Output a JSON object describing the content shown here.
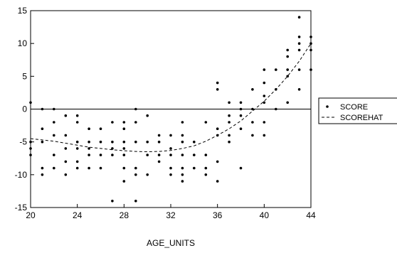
{
  "chart_data": {
    "type": "scatter",
    "title": "",
    "xlabel": "AGE_UNITS",
    "ylabel": "",
    "xlim": [
      20,
      44
    ],
    "ylim": [
      -15,
      15
    ],
    "x_ticks": [
      20,
      24,
      28,
      32,
      36,
      40,
      44
    ],
    "y_ticks": [
      -15,
      -10,
      -5,
      0,
      5,
      10,
      15
    ],
    "zero_line": true,
    "grid": false,
    "legend": {
      "placement": "right"
    },
    "series": [
      {
        "name": "SCORE",
        "style": "points",
        "color": "#000000",
        "points": [
          [
            20,
            1
          ],
          [
            20,
            -5
          ],
          [
            20,
            -6
          ],
          [
            20,
            -7
          ],
          [
            21,
            0
          ],
          [
            21,
            -3
          ],
          [
            21,
            -5
          ],
          [
            21,
            -9
          ],
          [
            21,
            -10
          ],
          [
            22,
            0
          ],
          [
            22,
            -2
          ],
          [
            22,
            -4
          ],
          [
            22,
            -7
          ],
          [
            22,
            -9
          ],
          [
            23,
            -1
          ],
          [
            23,
            -4
          ],
          [
            23,
            -6
          ],
          [
            23,
            -8
          ],
          [
            23,
            -10
          ],
          [
            24,
            -1
          ],
          [
            24,
            -2
          ],
          [
            24,
            -5
          ],
          [
            24,
            -6
          ],
          [
            24,
            -8
          ],
          [
            24,
            -9
          ],
          [
            25,
            -3
          ],
          [
            25,
            -5
          ],
          [
            25,
            -6
          ],
          [
            25,
            -7
          ],
          [
            25,
            -9
          ],
          [
            26,
            -3
          ],
          [
            26,
            -5
          ],
          [
            26,
            -7
          ],
          [
            26,
            -9
          ],
          [
            27,
            -2
          ],
          [
            27,
            -5
          ],
          [
            27,
            -6
          ],
          [
            27,
            -7
          ],
          [
            27,
            -14
          ],
          [
            28,
            -2
          ],
          [
            28,
            -3
          ],
          [
            28,
            -5
          ],
          [
            28,
            -6
          ],
          [
            28,
            -7
          ],
          [
            28,
            -9
          ],
          [
            28,
            -11
          ],
          [
            29,
            0
          ],
          [
            29,
            -2
          ],
          [
            29,
            -5
          ],
          [
            29,
            -9
          ],
          [
            29,
            -10
          ],
          [
            29,
            -14
          ],
          [
            30,
            -1
          ],
          [
            30,
            -5
          ],
          [
            30,
            -7
          ],
          [
            30,
            -10
          ],
          [
            31,
            -4
          ],
          [
            31,
            -5
          ],
          [
            31,
            -7
          ],
          [
            31,
            -8
          ],
          [
            32,
            -4
          ],
          [
            32,
            -6
          ],
          [
            32,
            -7
          ],
          [
            32,
            -9
          ],
          [
            32,
            -10
          ],
          [
            33,
            -2
          ],
          [
            33,
            -4
          ],
          [
            33,
            -5
          ],
          [
            33,
            -7
          ],
          [
            33,
            -9
          ],
          [
            33,
            -10
          ],
          [
            33,
            -11
          ],
          [
            34,
            -5
          ],
          [
            34,
            -7
          ],
          [
            34,
            -9
          ],
          [
            35,
            -2
          ],
          [
            35,
            -7
          ],
          [
            35,
            -9
          ],
          [
            35,
            -10
          ],
          [
            36,
            4
          ],
          [
            36,
            3
          ],
          [
            36,
            -3
          ],
          [
            36,
            -4
          ],
          [
            36,
            -8
          ],
          [
            36,
            -11
          ],
          [
            37,
            1
          ],
          [
            37,
            -1
          ],
          [
            37,
            -2
          ],
          [
            37,
            -4
          ],
          [
            37,
            -5
          ],
          [
            38,
            1
          ],
          [
            38,
            0
          ],
          [
            38,
            -1
          ],
          [
            38,
            -3
          ],
          [
            38,
            -9
          ],
          [
            39,
            3
          ],
          [
            39,
            0
          ],
          [
            39,
            -2
          ],
          [
            39,
            -4
          ],
          [
            40,
            6
          ],
          [
            40,
            4
          ],
          [
            40,
            2
          ],
          [
            40,
            1
          ],
          [
            40,
            -2
          ],
          [
            40,
            -4
          ],
          [
            41,
            6
          ],
          [
            41,
            3
          ],
          [
            41,
            0
          ],
          [
            42,
            9
          ],
          [
            42,
            8
          ],
          [
            42,
            6
          ],
          [
            42,
            5
          ],
          [
            42,
            1
          ],
          [
            43,
            14
          ],
          [
            43,
            11
          ],
          [
            43,
            10
          ],
          [
            43,
            9
          ],
          [
            43,
            6
          ],
          [
            43,
            3
          ],
          [
            44,
            11
          ],
          [
            44,
            10
          ],
          [
            44,
            9
          ],
          [
            44,
            6
          ]
        ]
      },
      {
        "name": "SCOREHAT",
        "style": "dashed-line",
        "color": "#000000",
        "points": [
          [
            20,
            -4.5
          ],
          [
            21,
            -4.7
          ],
          [
            22,
            -4.9
          ],
          [
            23,
            -5.2
          ],
          [
            24,
            -5.5
          ],
          [
            25,
            -5.8
          ],
          [
            26,
            -6.0
          ],
          [
            27,
            -6.2
          ],
          [
            28,
            -6.35
          ],
          [
            29,
            -6.45
          ],
          [
            30,
            -6.5
          ],
          [
            31,
            -6.45
          ],
          [
            32,
            -6.3
          ],
          [
            33,
            -6.0
          ],
          [
            34,
            -5.6
          ],
          [
            35,
            -4.9
          ],
          [
            36,
            -4.0
          ],
          [
            37,
            -3.0
          ],
          [
            38,
            -1.8
          ],
          [
            39,
            -0.3
          ],
          [
            40,
            1.2
          ],
          [
            41,
            3.0
          ],
          [
            42,
            5.0
          ],
          [
            43,
            7.3
          ],
          [
            44,
            10.0
          ]
        ]
      }
    ]
  }
}
